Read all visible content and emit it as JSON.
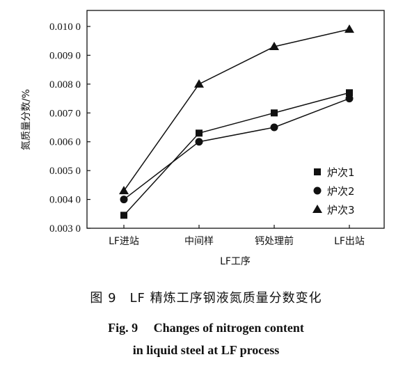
{
  "chart_data": {
    "type": "line",
    "categories": [
      "LF进站",
      "中间样",
      "钙处理前",
      "LF出站"
    ],
    "series": [
      {
        "name": "炉次1",
        "marker": "square",
        "values": [
          0.00345,
          0.0063,
          0.007,
          0.0077
        ]
      },
      {
        "name": "炉次2",
        "marker": "circle",
        "values": [
          0.004,
          0.006,
          0.0065,
          0.0075
        ]
      },
      {
        "name": "炉次3",
        "marker": "triangle",
        "values": [
          0.0043,
          0.008,
          0.0093,
          0.0099
        ]
      }
    ],
    "xlabel": "LF工序",
    "ylabel": "氮质量分数/%",
    "ylim": [
      0.003,
      0.01
    ],
    "yticks": [
      "0.003 0",
      "0.004 0",
      "0.005 0",
      "0.006 0",
      "0.007 0",
      "0.008 0",
      "0.009 0",
      "0.010 0"
    ],
    "grid": false,
    "legend_position": "bottom-right"
  },
  "caption": {
    "cn": "图 9　LF 精炼工序钢液氮质量分数变化",
    "en_line1": "Fig. 9　 Changes of nitrogen content",
    "en_line2": "in liquid steel at LF process"
  },
  "colors": {
    "ink": "#111111",
    "background": "#ffffff"
  }
}
